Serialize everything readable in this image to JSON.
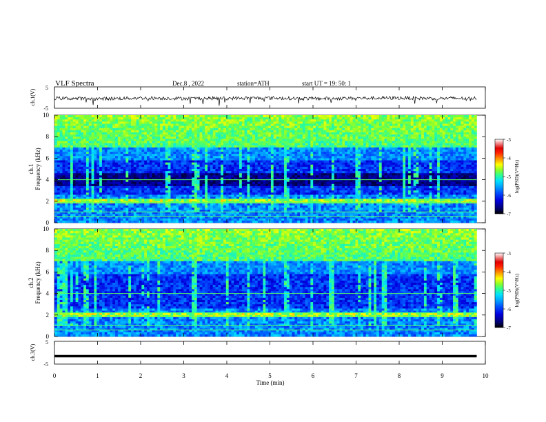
{
  "header": {
    "title": "VLF  Spectra",
    "date": "Dec.8  , 2022",
    "station": "station=ATH",
    "start_ut": "start  UT  =    19: 50: 1"
  },
  "colorbar": {
    "label": "log(PSD)(V²/Hz)",
    "ticks": [
      "-3",
      "-4",
      "-5",
      "-6",
      "-7"
    ],
    "colors": [
      "#000000",
      "#00007a",
      "#0000e0",
      "#0050ff",
      "#00a0ff",
      "#00e0ff",
      "#30ff90",
      "#80ff30",
      "#ffff00",
      "#ff9000",
      "#ff2000",
      "#e00000",
      "#ffffff"
    ]
  },
  "chart_data": [
    {
      "type": "line",
      "panel": "ch1-waveform",
      "ylabel": "ch.1(V)",
      "ylim": [
        -5,
        5
      ],
      "yticks": [
        "5",
        "-5"
      ],
      "x": [
        0,
        1,
        2,
        3,
        4,
        5,
        6,
        7,
        8,
        9,
        9.8
      ],
      "y": [
        -0.3,
        -0.6,
        -0.2,
        -0.4,
        -0.3,
        -0.2,
        -0.5,
        -0.3,
        -0.2,
        -0.4,
        -0.3
      ],
      "xlim": [
        0,
        10
      ]
    },
    {
      "type": "heatmap",
      "panel": "ch1-spectrogram",
      "ylabel": "ch.1\nFrequency  (kHz)",
      "ylim": [
        0,
        10
      ],
      "xlim": [
        0,
        10
      ],
      "data_end": 9.8,
      "yticks": [
        "10",
        "8",
        "6",
        "4",
        "2",
        "0"
      ],
      "zlim": [
        -7,
        -3
      ]
    },
    {
      "type": "heatmap",
      "panel": "ch2-spectrogram",
      "ylabel": "ch.2\nFrequency  (kHz)",
      "ylim": [
        0,
        10
      ],
      "xlim": [
        0,
        10
      ],
      "data_end": 9.8,
      "yticks": [
        "10",
        "8",
        "6",
        "4",
        "2",
        "0"
      ],
      "zlim": [
        -7,
        -3
      ]
    },
    {
      "type": "line",
      "panel": "ch3-waveform",
      "ylabel": "ch.3(V)",
      "ylim": [
        -5,
        5
      ],
      "yticks": [
        "5",
        "-5"
      ],
      "x": [
        0,
        9.8
      ],
      "y": [
        -1.5,
        -1.5
      ],
      "xlim": [
        0,
        10
      ]
    }
  ],
  "xaxis": {
    "label": "Time  (min)",
    "ticks": [
      "0",
      "1",
      "2",
      "3",
      "4",
      "5",
      "6",
      "7",
      "8",
      "9",
      "10"
    ]
  }
}
